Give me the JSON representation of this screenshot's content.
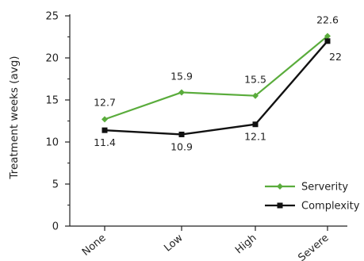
{
  "chart_data": {
    "type": "line",
    "title": "",
    "xlabel": "",
    "ylabel": "Treatment weeks (avg)",
    "categories": [
      "None",
      "Low",
      "High",
      "Severe"
    ],
    "ylim": [
      0,
      25
    ],
    "yticks": [
      0,
      5,
      10,
      15,
      20,
      25
    ],
    "grid": false,
    "legend_position": "bottom-right",
    "series": [
      {
        "name": "Serverity",
        "color": "#5aac3c",
        "marker": "diamond",
        "values": [
          12.7,
          15.9,
          15.5,
          22.6
        ],
        "labels": [
          "12.7",
          "15.9",
          "15.5",
          "22.6"
        ]
      },
      {
        "name": "Complexity",
        "color": "#111111",
        "marker": "square",
        "values": [
          11.4,
          10.9,
          12.1,
          22
        ],
        "labels": [
          "11.4",
          "10.9",
          "12.1",
          "22"
        ]
      }
    ]
  }
}
